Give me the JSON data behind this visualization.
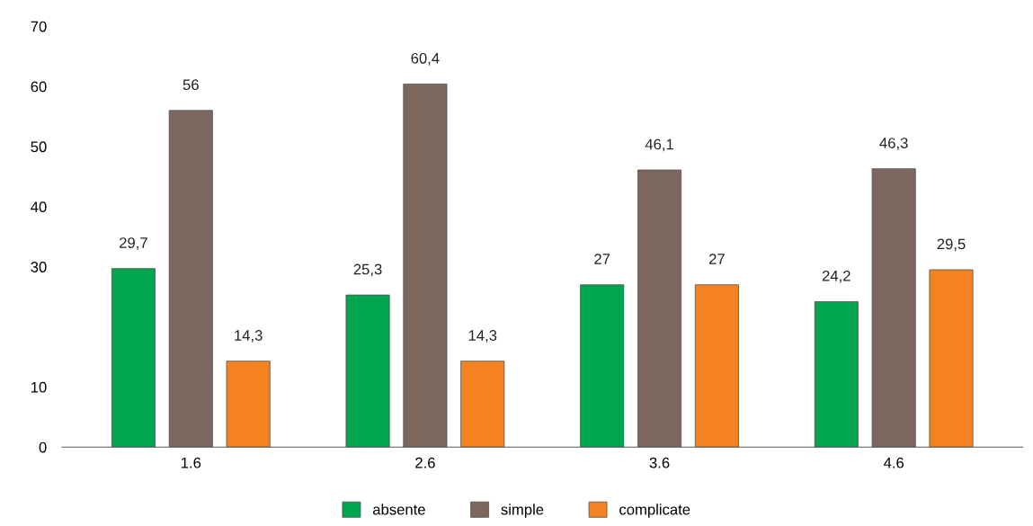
{
  "chart_data": {
    "type": "bar",
    "categories": [
      "1.6",
      "2.6",
      "3.6",
      "4.6"
    ],
    "series": [
      {
        "name": "absente",
        "color": "#00a54f",
        "values": [
          29.7,
          25.3,
          27,
          24.2
        ],
        "value_labels": [
          "29,7",
          "25,3",
          "27",
          "24,2"
        ]
      },
      {
        "name": "simple",
        "color": "#7c675f",
        "values": [
          56,
          60.4,
          46.1,
          46.3
        ],
        "value_labels": [
          "56",
          "60,4",
          "46,1",
          "46,3"
        ]
      },
      {
        "name": "complicate",
        "color": "#f58220",
        "values": [
          14.3,
          14.3,
          27,
          29.5
        ],
        "value_labels": [
          "14,3",
          "14,3",
          "27",
          "29,5"
        ]
      }
    ],
    "ylim": [
      0,
      70
    ],
    "yticks": [
      0,
      10,
      30,
      40,
      50,
      60,
      70
    ],
    "legend": "bottom",
    "grid": false
  }
}
